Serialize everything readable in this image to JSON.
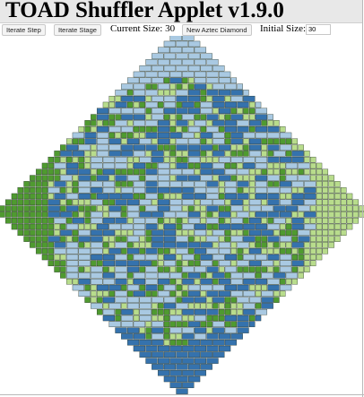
{
  "app": {
    "title": "TOAD Shuffler Applet v1.9.0"
  },
  "controls": {
    "iterate_step_label": "Iterate Step",
    "iterate_stage_label": "Iterate Stage",
    "current_size_label": "Current Size: 30",
    "new_diamond_label": "New Aztec Diamond",
    "initial_size_label": "Initial Size:",
    "initial_size_value": "30"
  },
  "tiling": {
    "order": 30,
    "colors": {
      "north": "#a9c9e2",
      "south": "#3572ad",
      "east": "#b8dc8c",
      "west": "#4f9a30",
      "outline": "#1c2a1c"
    },
    "description_ref": "Random domino tiling of an Aztec diamond of order 30"
  }
}
